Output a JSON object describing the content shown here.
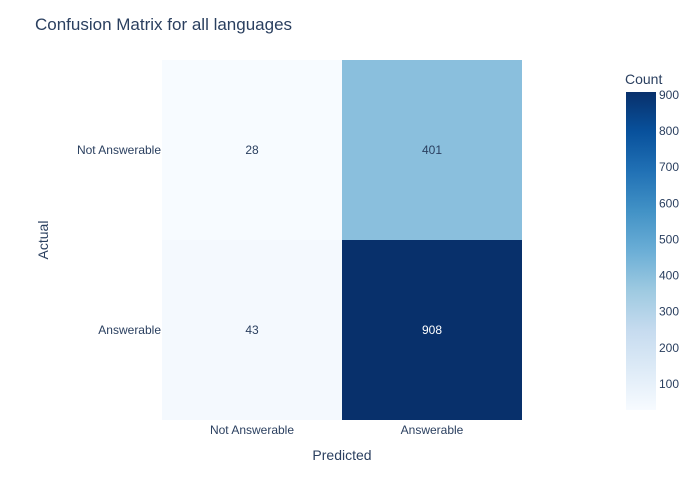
{
  "chart_data": {
    "type": "heatmap",
    "title": "Confusion Matrix for all languages",
    "xlabel": "Predicted",
    "ylabel": "Actual",
    "x_categories": [
      "Not Answerable",
      "Answerable"
    ],
    "y_categories": [
      "Not Answerable",
      "Answerable"
    ],
    "values": [
      [
        28,
        401
      ],
      [
        43,
        908
      ]
    ],
    "colorscale": "Blues",
    "colorbar": {
      "title": "Count",
      "range": [
        28,
        908
      ],
      "ticks": [
        100,
        200,
        300,
        400,
        500,
        600,
        700,
        800,
        900
      ]
    }
  }
}
